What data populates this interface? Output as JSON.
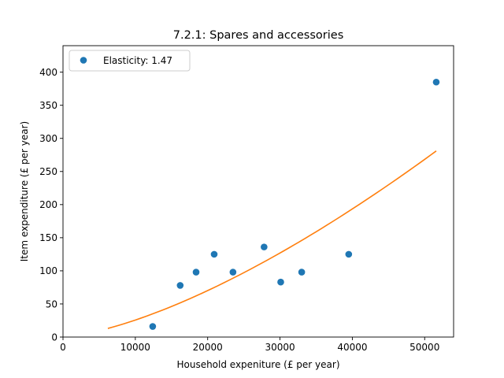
{
  "chart_data": {
    "type": "scatter",
    "title": "7.2.1: Spares and accessories",
    "xlabel": "Household expeniture (£ per year)",
    "ylabel": "Item expenditure (£ per year)",
    "xlim": [
      0,
      54000
    ],
    "ylim": [
      0,
      440
    ],
    "x_ticks": [
      0,
      10000,
      20000,
      30000,
      40000,
      50000
    ],
    "y_ticks": [
      0,
      50,
      100,
      150,
      200,
      250,
      300,
      350,
      400
    ],
    "grid": false,
    "legend_position": "top-left",
    "series": [
      {
        "name": "Elasticity: 1.47",
        "kind": "points",
        "color": "#1f77b4",
        "x": [
          12400,
          16200,
          18400,
          20900,
          23500,
          27800,
          30100,
          33000,
          39500,
          51600
        ],
        "y": [
          16,
          78,
          98,
          125,
          98,
          136,
          83,
          98,
          125,
          385
        ]
      },
      {
        "kind": "line",
        "color": "#ff7f0e",
        "x": [
          6200,
          51600
        ],
        "y": [
          13,
          281
        ],
        "curve_exponent": 1.47
      }
    ]
  }
}
